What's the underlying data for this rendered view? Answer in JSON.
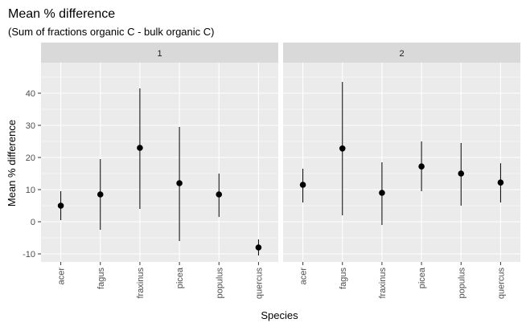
{
  "chart_data": {
    "type": "scatter",
    "title": "Mean % difference",
    "subtitle": "(Sum of fractions organic C - bulk organic C)",
    "xlabel": "Species",
    "ylabel": "Mean % difference",
    "categories": [
      "acer",
      "fagus",
      "fraxinus",
      "picea",
      "populus",
      "quercus"
    ],
    "ylim": [
      -12.5,
      49.5
    ],
    "yticks": [
      -10,
      0,
      10,
      20,
      30,
      40
    ],
    "grid": true,
    "facets": [
      {
        "label": "1",
        "points": [
          {
            "x": "acer",
            "y": 5,
            "ymin": 0.5,
            "ymax": 9.5
          },
          {
            "x": "fagus",
            "y": 8.5,
            "ymin": -2.5,
            "ymax": 19.5
          },
          {
            "x": "fraxinus",
            "y": 23,
            "ymin": 4,
            "ymax": 41.5
          },
          {
            "x": "picea",
            "y": 12,
            "ymin": -6,
            "ymax": 29.5
          },
          {
            "x": "populus",
            "y": 8.5,
            "ymin": 1.5,
            "ymax": 15
          },
          {
            "x": "quercus",
            "y": -8,
            "ymin": -10.5,
            "ymax": -5.5
          }
        ]
      },
      {
        "label": "2",
        "points": [
          {
            "x": "acer",
            "y": 11.5,
            "ymin": 6,
            "ymax": 16.5
          },
          {
            "x": "fagus",
            "y": 22.8,
            "ymin": 2,
            "ymax": 43.5
          },
          {
            "x": "fraxinus",
            "y": 9,
            "ymin": -1,
            "ymax": 18.5
          },
          {
            "x": "picea",
            "y": 17.2,
            "ymin": 9.5,
            "ymax": 25
          },
          {
            "x": "populus",
            "y": 15,
            "ymin": 5,
            "ymax": 24.5
          },
          {
            "x": "quercus",
            "y": 12.2,
            "ymin": 6,
            "ymax": 18.2
          }
        ]
      }
    ],
    "colors": {
      "panel_background": "#ebebeb",
      "strip_background": "#d9d9d9",
      "grid": "#ffffff",
      "point": "#000000"
    }
  }
}
